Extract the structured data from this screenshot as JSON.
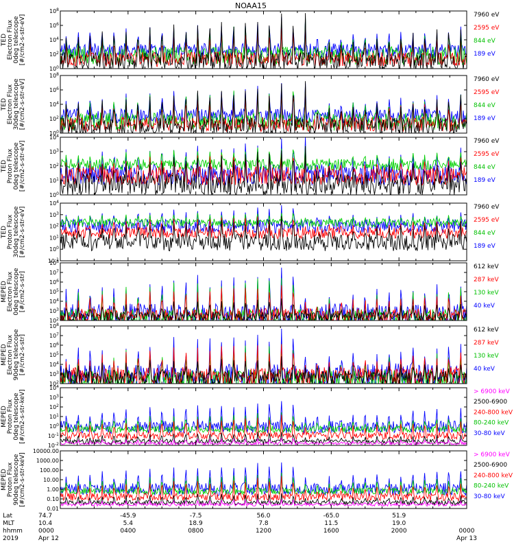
{
  "title": "NOAA15",
  "chart_data": [
    {
      "type": "line",
      "instrument": "TED",
      "ylabel": [
        "TED",
        "Electron Flux",
        "0deg telescope",
        "[#/cm2-s-str-eV]"
      ],
      "scale": "log",
      "ylim": [
        1,
        100000000
      ],
      "ticks": [
        "10^0",
        "10^2",
        "10^4",
        "10^6",
        "10^8"
      ],
      "series": [
        {
          "name": "7960 eV",
          "color": "#000000",
          "base": 1.0,
          "spike": 8.0,
          "amp": 2.5
        },
        {
          "name": "2595 eV",
          "color": "#ff0000",
          "base": 1.3,
          "spike": 6.0,
          "amp": 2.0
        },
        {
          "name": "844 eV",
          "color": "#00d000",
          "base": 1.8,
          "spike": 6.8,
          "amp": 2.5
        },
        {
          "name": "189 eV",
          "color": "#0000ff",
          "base": 2.5,
          "spike": 7.2,
          "amp": 2.0
        }
      ]
    },
    {
      "type": "line",
      "instrument": "TED",
      "ylabel": [
        "TED",
        "Electron Flux",
        "30deg telescope",
        "[#/cm2-s-str-eV]"
      ],
      "scale": "log",
      "ylim": [
        1,
        100000000
      ],
      "ticks": [
        "10^0",
        "10^2",
        "10^4",
        "10^6",
        "10^8"
      ],
      "series": [
        {
          "name": "7960 eV",
          "color": "#000000",
          "base": 0.9,
          "spike": 7.2,
          "amp": 2.5
        },
        {
          "name": "2595 eV",
          "color": "#ff0000",
          "base": 1.2,
          "spike": 6.2,
          "amp": 2.0
        },
        {
          "name": "844 eV",
          "color": "#00d000",
          "base": 1.6,
          "spike": 6.8,
          "amp": 2.5
        },
        {
          "name": "189 eV",
          "color": "#0000ff",
          "base": 2.4,
          "spike": 7.0,
          "amp": 2.0
        }
      ]
    },
    {
      "type": "line",
      "instrument": "TED",
      "ylabel": [
        "TED",
        "Proton Flux",
        "0deg telescope",
        "[#/cm2-s-str-eV]"
      ],
      "scale": "log",
      "ylim": [
        1,
        10000
      ],
      "ticks": [
        "10^0",
        "10^1",
        "10^2",
        "10^3",
        "10^4"
      ],
      "series": [
        {
          "name": "7960 eV",
          "color": "#000000",
          "base": 0.7,
          "spike": 3.2,
          "amp": 1.5
        },
        {
          "name": "2595 eV",
          "color": "#ff0000",
          "base": 1.3,
          "spike": 3.0,
          "amp": 1.3
        },
        {
          "name": "844 eV",
          "color": "#00d000",
          "base": 2.1,
          "spike": 3.4,
          "amp": 0.8
        },
        {
          "name": "189 eV",
          "color": "#0000ff",
          "base": 1.4,
          "spike": 3.9,
          "amp": 1.5
        }
      ]
    },
    {
      "type": "line",
      "instrument": "TED",
      "ylabel": [
        "TED",
        "Proton Flux",
        "30deg telescope",
        "[#/cm2-s-str-eV]"
      ],
      "scale": "log",
      "ylim": [
        0.1,
        10000
      ],
      "ticks": [
        "10^-1",
        "10^0",
        "10^1",
        "10^2",
        "10^3",
        "10^4"
      ],
      "series": [
        {
          "name": "7960 eV",
          "color": "#000000",
          "base": 0.6,
          "spike": 3.0,
          "amp": 1.5
        },
        {
          "name": "2595 eV",
          "color": "#ff0000",
          "base": 1.4,
          "spike": 3.0,
          "amp": 1.0
        },
        {
          "name": "844 eV",
          "color": "#00d000",
          "base": 2.3,
          "spike": 3.3,
          "amp": 0.7
        },
        {
          "name": "189 eV",
          "color": "#0000ff",
          "base": 2.0,
          "spike": 3.8,
          "amp": 1.2
        }
      ]
    },
    {
      "type": "line",
      "instrument": "MEPED",
      "ylabel": [
        "MEPED",
        "Electron Flux",
        "0deg telescope",
        "[#/cm2-s-str]"
      ],
      "scale": "log",
      "ylim": [
        100,
        100000000
      ],
      "ticks": [
        "10^2",
        "10^3",
        "10^4",
        "10^5",
        "10^6",
        "10^7",
        "10^8"
      ],
      "series": [
        {
          "name": "612 keV",
          "color": "#000000",
          "base": 2.4,
          "spike": 4.4,
          "amp": 1.0
        },
        {
          "name": "287 keV",
          "color": "#ff0000",
          "base": 2.5,
          "spike": 6.0,
          "amp": 1.5
        },
        {
          "name": "130 keV",
          "color": "#00d000",
          "base": 2.2,
          "spike": 7.0,
          "amp": 2.0
        },
        {
          "name": "40 keV",
          "color": "#0000ff",
          "base": 2.5,
          "spike": 7.6,
          "amp": 2.5
        }
      ]
    },
    {
      "type": "line",
      "instrument": "MEPED",
      "ylabel": [
        "MEPED",
        "Electron Flux",
        "90deg telescope",
        "[#/cm2-s-str]"
      ],
      "scale": "log",
      "ylim": [
        100,
        100000000
      ],
      "ticks": [
        "10^2",
        "10^3",
        "10^4",
        "10^5",
        "10^6",
        "10^7",
        "10^8"
      ],
      "series": [
        {
          "name": "612 keV",
          "color": "#000000",
          "base": 2.6,
          "spike": 5.0,
          "amp": 1.5
        },
        {
          "name": "287 keV",
          "color": "#ff0000",
          "base": 2.7,
          "spike": 6.5,
          "amp": 2.0
        },
        {
          "name": "130 keV",
          "color": "#00d000",
          "base": 2.2,
          "spike": 6.8,
          "amp": 2.5
        },
        {
          "name": "40 keV",
          "color": "#0000ff",
          "base": 2.6,
          "spike": 7.8,
          "amp": 3.0
        }
      ]
    },
    {
      "type": "line",
      "instrument": "MEPED",
      "ylabel": [
        "MEPED",
        "Proton Flux",
        "0deg telescope",
        "[#/cm2-s-str-keV]"
      ],
      "scale": "log",
      "ylim": [
        0.01,
        10000
      ],
      "ticks": [
        "10^-2",
        "10^-1",
        "10^0",
        "10^1",
        "10^2",
        "10^3",
        "10^4"
      ],
      "series": [
        {
          "name": "> 6900 keV",
          "color": "#ff00ff",
          "base": -1.8,
          "spike": -1.2,
          "amp": 0.3
        },
        {
          "name": "2500-6900",
          "color": "#000000",
          "base": -1.6,
          "spike": -0.5,
          "amp": 0.5
        },
        {
          "name": "240-800 keV",
          "color": "#ff0000",
          "base": -1.0,
          "spike": 1.2,
          "amp": 0.8
        },
        {
          "name": "80-240 keV",
          "color": "#00d000",
          "base": -0.3,
          "spike": 1.5,
          "amp": 0.7
        },
        {
          "name": "30-80 keV",
          "color": "#0000ff",
          "base": -0.1,
          "spike": 2.8,
          "amp": 1.3
        }
      ]
    },
    {
      "type": "line",
      "instrument": "MEPED",
      "ylabel": [
        "MEPED",
        "Proton Flux",
        "90deg telescope",
        "[#/cm2-s-str-keV]"
      ],
      "scale": "log",
      "ylim": [
        0.01,
        10000
      ],
      "ticks": [
        "0.01",
        "0.10",
        "1.00",
        "10.00",
        "100.00",
        "1000.00",
        "10000.00"
      ],
      "series": [
        {
          "name": "> 6900 keV",
          "color": "#ff00ff",
          "base": -1.6,
          "spike": -1.0,
          "amp": 0.3
        },
        {
          "name": "2500-6900",
          "color": "#000000",
          "base": -1.4,
          "spike": -0.3,
          "amp": 0.5
        },
        {
          "name": "240-800 keV",
          "color": "#ff0000",
          "base": -0.8,
          "spike": 1.4,
          "amp": 0.8
        },
        {
          "name": "80-240 keV",
          "color": "#00d000",
          "base": -0.2,
          "spike": 1.8,
          "amp": 0.7
        },
        {
          "name": "30-80 keV",
          "color": "#0000ff",
          "base": 0.0,
          "spike": 3.0,
          "amp": 1.3
        }
      ]
    }
  ],
  "xaxis": {
    "row_labels": [
      "Lat",
      "MLT",
      "hhmm",
      "2019"
    ],
    "columns": [
      {
        "t": 0,
        "values": [
          "74.7",
          "10.4",
          "0000",
          "Apr 12"
        ]
      },
      {
        "t": 4,
        "values": [
          "-45.9",
          "5.4",
          "0400",
          ""
        ]
      },
      {
        "t": 8,
        "values": [
          "-7.5",
          "18.9",
          "0800",
          ""
        ]
      },
      {
        "t": 12,
        "values": [
          "56.0",
          "7.8",
          "1200",
          ""
        ]
      },
      {
        "t": 16,
        "values": [
          "-65.0",
          "11.5",
          "1600",
          ""
        ]
      },
      {
        "t": 20,
        "values": [
          "51.9",
          "19.0",
          "2000",
          ""
        ]
      },
      {
        "t": 24,
        "values": [
          "",
          "",
          "0000",
          "Apr 13"
        ]
      }
    ],
    "range_hours": [
      0,
      24
    ],
    "orbit_passes": 34
  }
}
